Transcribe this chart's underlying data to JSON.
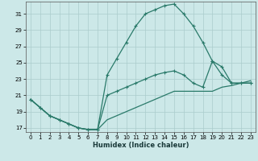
{
  "xlabel": "Humidex (Indice chaleur)",
  "xlim": [
    -0.5,
    23.5
  ],
  "ylim": [
    16.5,
    32.5
  ],
  "yticks": [
    17,
    19,
    21,
    23,
    25,
    27,
    29,
    31
  ],
  "xticks": [
    0,
    1,
    2,
    3,
    4,
    5,
    6,
    7,
    8,
    9,
    10,
    11,
    12,
    13,
    14,
    15,
    16,
    17,
    18,
    19,
    20,
    21,
    22,
    23
  ],
  "bg_color": "#cce8e8",
  "grid_color": "#aacccc",
  "line_color": "#2a7a6a",
  "line1_y": [
    20.5,
    19.5,
    18.5,
    18.0,
    17.5,
    17.0,
    16.8,
    16.8,
    23.5,
    25.5,
    27.5,
    29.5,
    31.0,
    31.5,
    32.0,
    32.2,
    31.0,
    29.5,
    27.5,
    25.2,
    23.5,
    22.5,
    22.5,
    22.5
  ],
  "line2_y": [
    20.5,
    19.5,
    18.5,
    18.0,
    17.5,
    17.0,
    16.8,
    16.8,
    21.0,
    21.5,
    22.0,
    22.5,
    23.0,
    23.5,
    23.8,
    24.0,
    23.5,
    22.5,
    22.0,
    25.2,
    24.5,
    22.5,
    22.5,
    22.5
  ],
  "line3_y": [
    20.5,
    19.5,
    18.5,
    18.0,
    17.5,
    17.0,
    16.8,
    16.8,
    18.0,
    18.5,
    19.0,
    19.5,
    20.0,
    20.5,
    21.0,
    21.5,
    21.5,
    21.5,
    21.5,
    21.5,
    22.0,
    22.2,
    22.5,
    22.8
  ]
}
